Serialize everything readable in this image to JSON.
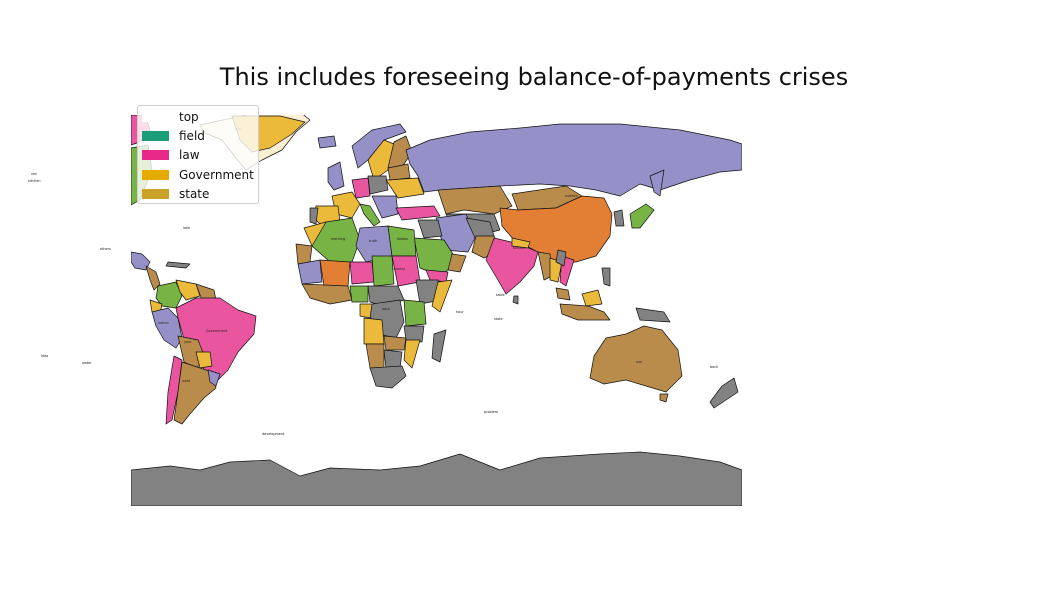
{
  "title": "This includes foreseeing balance-of-payments crises",
  "legend": [
    {
      "label": "top",
      "color": "#ffffff"
    },
    {
      "label": "field",
      "color": "#1b9e77"
    },
    {
      "label": "law",
      "color": "#e7298a"
    },
    {
      "label": "Government",
      "color": "#e6ab02"
    },
    {
      "label": "state",
      "color": "#c9a227"
    }
  ],
  "palette": {
    "lavender": "#9590c8",
    "orange": "#e37f34",
    "green": "#78b346",
    "pink": "#e9559f",
    "yellow": "#ebba3a",
    "tan": "#b98c4b",
    "gray": "#828282"
  },
  "map_labels": [
    {
      "id": "china",
      "text": "surface"
    },
    {
      "id": "india",
      "text": "surface"
    },
    {
      "id": "brazil",
      "text": "Government"
    },
    {
      "id": "australia",
      "text": "sun"
    },
    {
      "id": "greenland",
      "text": "lake"
    },
    {
      "id": "algeria",
      "text": "morning"
    },
    {
      "id": "libya",
      "text": "truth"
    },
    {
      "id": "egypt",
      "text": "Nation"
    },
    {
      "id": "sudan",
      "text": "country"
    },
    {
      "id": "argentina",
      "text": "word"
    },
    {
      "id": "bolivia",
      "text": "your"
    },
    {
      "id": "peru",
      "text": "nation"
    },
    {
      "id": "drc",
      "text": "each"
    },
    {
      "id": "ocean1",
      "text": "red"
    },
    {
      "id": "ocean2",
      "text": "kitchen"
    },
    {
      "id": "ocean3",
      "text": "others"
    },
    {
      "id": "ocean4",
      "text": "lake"
    },
    {
      "id": "ocean5",
      "text": "water"
    },
    {
      "id": "ocean6",
      "text": "idea"
    },
    {
      "id": "ocean7",
      "text": "development"
    },
    {
      "id": "ocean8",
      "text": "table"
    },
    {
      "id": "ocean9",
      "text": "state"
    },
    {
      "id": "ocean10",
      "text": "back"
    },
    {
      "id": "ocean11",
      "text": "problem"
    },
    {
      "id": "ocean12",
      "text": "hour"
    }
  ]
}
